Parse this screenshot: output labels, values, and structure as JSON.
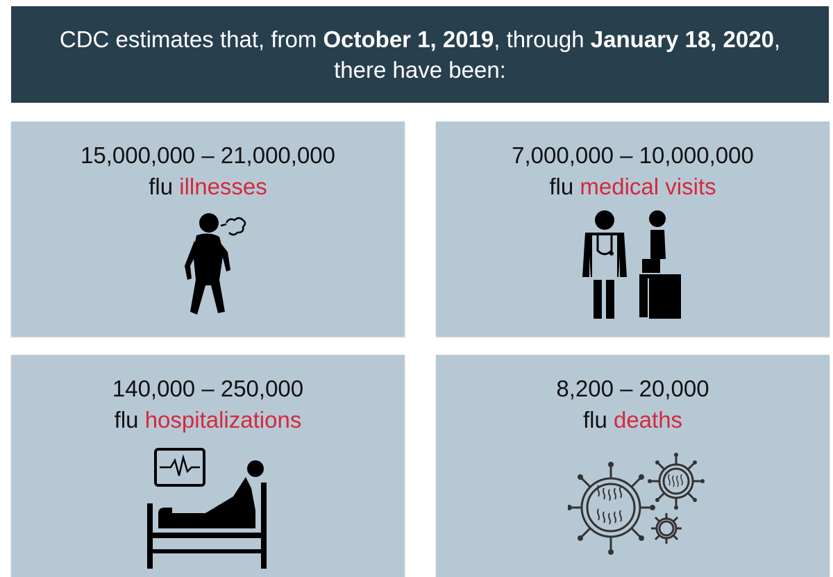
{
  "header": {
    "prefix": "CDC estimates that, from ",
    "date_start": "October 1, 2019",
    "middle": ", through ",
    "date_end": "January 18, 2020",
    "suffix": ",",
    "line2": "there have been:"
  },
  "cards": [
    {
      "range": "15,000,000 – 21,000,000",
      "prefix": "flu ",
      "highlight": "illnesses",
      "icon": "sick-person-icon"
    },
    {
      "range": "7,000,000 – 10,000,000",
      "prefix": "flu ",
      "highlight": "medical visits",
      "icon": "doctor-patient-icon"
    },
    {
      "range": "140,000 – 250,000",
      "prefix": "flu ",
      "highlight": "hospitalizations",
      "icon": "hospital-bed-icon"
    },
    {
      "range": "8,200 – 20,000",
      "prefix": "flu ",
      "highlight": "deaths",
      "icon": "virus-icon"
    }
  ],
  "colors": {
    "header_bg": "#283f4d",
    "card_bg": "#b7c8d5",
    "highlight": "#d32a3c"
  }
}
